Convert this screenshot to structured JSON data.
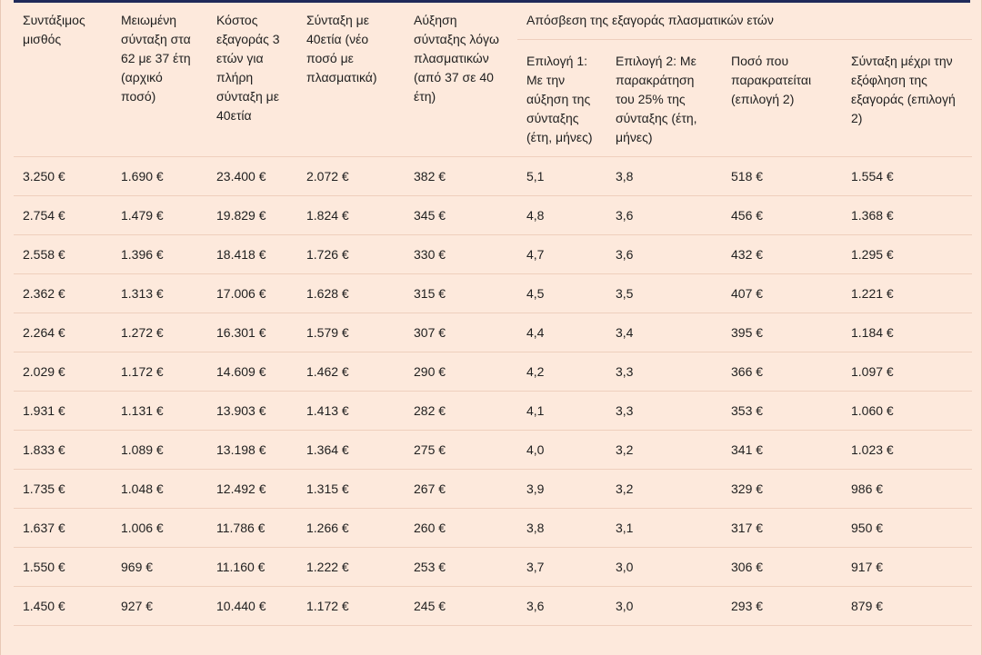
{
  "headers": {
    "c1": "Συντάξιμος μισθός",
    "c2": "Μειωμένη σύνταξη στα 62 με 37 έτη (αρχικό ποσό)",
    "c3": "Κόστος εξαγοράς 3 ετών για πλήρη σύνταξη με 40ετία",
    "c4": "Σύνταξη με 40ετία (νέο ποσό με πλασματικά)",
    "c5": "Αύξηση σύνταξης λόγω πλασματικών (από 37 σε 40 έτη)",
    "group": "Απόσβεση της εξαγοράς πλασματικών ετών",
    "s1": "Επιλογή 1: Με την αύξηση της σύνταξης (έτη, μήνες)",
    "s2": "Επιλογή 2: Με παρακράτηση του 25% της σύνταξης (έτη, μήνες)",
    "s3": "Ποσό που παρακρατείται (επιλογή 2)",
    "s4": "Σύνταξη μέχρι την εξόφληση της εξαγοράς (επιλογή 2)"
  },
  "rows": [
    [
      "3.250 €",
      "1.690 €",
      "23.400 €",
      "2.072 €",
      "382 €",
      "5,1",
      "3,8",
      "518 €",
      "1.554 €"
    ],
    [
      "2.754 €",
      "1.479 €",
      "19.829 €",
      "1.824 €",
      "345 €",
      "4,8",
      "3,6",
      "456 €",
      "1.368 €"
    ],
    [
      "2.558 €",
      "1.396 €",
      "18.418 €",
      "1.726 €",
      "330 €",
      "4,7",
      "3,6",
      "432 €",
      "1.295 €"
    ],
    [
      "2.362 €",
      "1.313 €",
      "17.006 €",
      "1.628 €",
      "315 €",
      "4,5",
      "3,5",
      "407 €",
      "1.221 €"
    ],
    [
      "2.264 €",
      "1.272 €",
      "16.301 €",
      "1.579 €",
      "307 €",
      "4,4",
      "3,4",
      "395 €",
      "1.184 €"
    ],
    [
      "2.029 €",
      "1.172 €",
      "14.609 €",
      "1.462 €",
      "290 €",
      "4,2",
      "3,3",
      "366 €",
      "1.097 €"
    ],
    [
      "1.931 €",
      "1.131 €",
      "13.903 €",
      "1.413 €",
      "282 €",
      "4,1",
      "3,3",
      "353 €",
      "1.060 €"
    ],
    [
      "1.833 €",
      "1.089 €",
      "13.198 €",
      "1.364 €",
      "275 €",
      "4,0",
      "3,2",
      "341 €",
      "1.023 €"
    ],
    [
      "1.735 €",
      "1.048 €",
      "12.492 €",
      "1.315 €",
      "267 €",
      "3,9",
      "3,2",
      "329 €",
      "986 €"
    ],
    [
      "1.637 €",
      "1.006 €",
      "11.786 €",
      "1.266 €",
      "260 €",
      "3,8",
      "3,1",
      "317 €",
      "950 €"
    ],
    [
      "1.550 €",
      "969 €",
      "11.160 €",
      "1.222 €",
      "253 €",
      "3,7",
      "3,0",
      "306 €",
      "917 €"
    ],
    [
      "1.450 €",
      "927 €",
      "10.440 €",
      "1.172 €",
      "245 €",
      "3,6",
      "3,0",
      "293 €",
      "879 €"
    ]
  ]
}
